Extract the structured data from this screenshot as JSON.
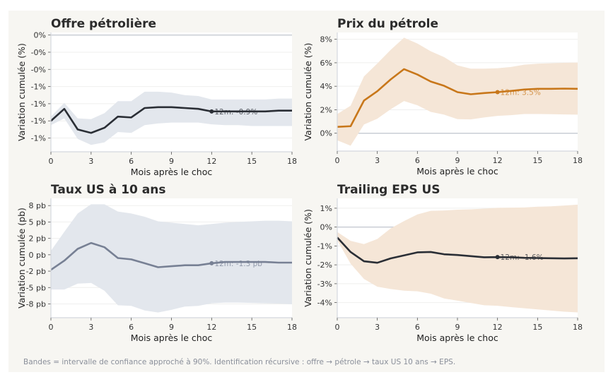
{
  "footer": "Bandes = intervalle de confiance approché à 90%. Identification récursive : offre → pétrole → taux US 10 ans → EPS.",
  "chart_data": [
    {
      "type": "line",
      "title": "Offre pétrolière",
      "xlabel": "Mois après le choc",
      "ylabel": "Variation cumulée (%)",
      "x": [
        0,
        1,
        2,
        3,
        4,
        5,
        6,
        7,
        8,
        9,
        10,
        11,
        12,
        13,
        14,
        15,
        16,
        17,
        18
      ],
      "xticks": [
        0,
        3,
        6,
        9,
        12,
        15,
        18
      ],
      "xticklabels": [
        "0",
        "3",
        "6",
        "9",
        "12",
        "15",
        "18"
      ],
      "ylim": [
        -1.36,
        0.03
      ],
      "yticks": [
        0,
        -0.2,
        -0.4,
        -0.6,
        -0.8,
        -1.0,
        -1.2
      ],
      "yticklabels": [
        "0%",
        "-0%",
        "-0%",
        "-1%",
        "-1%",
        "-1%",
        "-1%"
      ],
      "series": [
        {
          "values": [
            -1.0,
            -0.86,
            -1.1,
            -1.14,
            -1.08,
            -0.95,
            -0.96,
            -0.85,
            -0.84,
            -0.84,
            -0.85,
            -0.86,
            -0.89,
            -0.89,
            -0.89,
            -0.89,
            -0.89,
            -0.88,
            -0.88
          ],
          "band_upper": [
            -0.95,
            -0.79,
            -0.97,
            -0.98,
            -0.91,
            -0.77,
            -0.77,
            -0.66,
            -0.66,
            -0.67,
            -0.7,
            -0.71,
            -0.75,
            -0.75,
            -0.75,
            -0.75,
            -0.75,
            -0.74,
            -0.74
          ],
          "band_lower": [
            -1.05,
            -0.97,
            -1.21,
            -1.28,
            -1.25,
            -1.13,
            -1.14,
            -1.05,
            -1.03,
            -1.02,
            -1.02,
            -1.02,
            -1.04,
            -1.05,
            -1.05,
            -1.06,
            -1.06,
            -1.06,
            -1.06
          ]
        }
      ],
      "annotation": {
        "x": 12,
        "y": -0.89,
        "text": "12m: -0.9%"
      },
      "line_color": "#2a2e35",
      "band_color": "#e3e7ed",
      "grid": true
    },
    {
      "type": "line",
      "title": "Prix du pétrole",
      "xlabel": "Mois après le choc",
      "ylabel": "Variation cumulée (%)",
      "x": [
        0,
        1,
        2,
        3,
        4,
        5,
        6,
        7,
        8,
        9,
        10,
        11,
        12,
        13,
        14,
        15,
        16,
        17,
        18
      ],
      "xticks": [
        0,
        3,
        6,
        9,
        12,
        15,
        18
      ],
      "xticklabels": [
        "0",
        "3",
        "6",
        "9",
        "12",
        "15",
        "18"
      ],
      "ylim": [
        -1.52,
        8.58
      ],
      "yticks": [
        0,
        2,
        4,
        6,
        8
      ],
      "yticklabels": [
        "0%",
        "2%",
        "4%",
        "6%",
        "8%"
      ],
      "series": [
        {
          "values": [
            0.54,
            0.6,
            2.78,
            3.58,
            4.58,
            5.46,
            5.0,
            4.4,
            4.04,
            3.5,
            3.32,
            3.42,
            3.5,
            3.6,
            3.72,
            3.78,
            3.78,
            3.8,
            3.78
          ],
          "band_upper": [
            1.64,
            2.34,
            4.84,
            5.94,
            7.1,
            8.14,
            7.64,
            6.98,
            6.48,
            5.78,
            5.5,
            5.5,
            5.54,
            5.64,
            5.84,
            5.92,
            5.96,
            6.0,
            6.02
          ],
          "band_lower": [
            -0.6,
            -1.06,
            0.74,
            1.24,
            2.04,
            2.74,
            2.38,
            1.82,
            1.58,
            1.2,
            1.18,
            1.34,
            1.48,
            1.54,
            1.64,
            1.64,
            1.62,
            1.6,
            1.58
          ]
        }
      ],
      "annotation": {
        "x": 12,
        "y": 3.5,
        "text": "12m: 3.5%"
      },
      "line_color": "#c8771a",
      "band_color": "#f5e6d7",
      "grid": true
    },
    {
      "type": "line",
      "title": "Taux US à 10 ans",
      "xlabel": "Mois après le choc",
      "ylabel": "Variation cumulée (pb)",
      "x": [
        0,
        1,
        2,
        3,
        4,
        5,
        6,
        7,
        8,
        9,
        10,
        11,
        12,
        13,
        14,
        15,
        16,
        17,
        18
      ],
      "xticks": [
        0,
        3,
        6,
        9,
        12,
        15,
        18
      ],
      "xticklabels": [
        "0",
        "3",
        "6",
        "9",
        "12",
        "15",
        "18"
      ],
      "ylim": [
        -9.6,
        8.6
      ],
      "yticks": [
        7.5,
        5,
        2.5,
        0,
        -2.5,
        -5,
        -7.5
      ],
      "yticklabels": [
        "8 pb",
        "5 pb",
        "2 pb",
        "0 pb",
        "-2 pb",
        "-5 pb",
        "-8 pb"
      ],
      "series": [
        {
          "values": [
            -2.3,
            -0.9,
            0.9,
            1.8,
            1.15,
            -0.5,
            -0.7,
            -1.3,
            -1.9,
            -1.75,
            -1.6,
            -1.6,
            -1.3,
            -1.1,
            -1.1,
            -1.1,
            -1.1,
            -1.2,
            -1.2
          ],
          "band_upper": [
            0.6,
            3.5,
            6.3,
            7.7,
            7.7,
            6.6,
            6.3,
            5.8,
            5.1,
            4.9,
            4.7,
            4.5,
            4.7,
            4.9,
            5.0,
            5.1,
            5.2,
            5.2,
            5.1
          ],
          "band_lower": [
            -5.3,
            -5.3,
            -4.4,
            -4.3,
            -5.5,
            -7.7,
            -7.8,
            -8.5,
            -8.8,
            -8.4,
            -7.9,
            -7.8,
            -7.4,
            -7.3,
            -7.3,
            -7.35,
            -7.4,
            -7.45,
            -7.55
          ]
        }
      ],
      "annotation": {
        "x": 12,
        "y": -1.3,
        "text": "12m: -1.3 pb"
      },
      "line_color": "#778094",
      "band_color": "#e3e7ed",
      "grid": true
    },
    {
      "type": "line",
      "title": "Trailing EPS US",
      "xlabel": "Mois après le choc",
      "ylabel": "Variation cumulée (%)",
      "x": [
        0,
        1,
        2,
        3,
        4,
        5,
        6,
        7,
        8,
        9,
        10,
        11,
        12,
        13,
        14,
        15,
        16,
        17,
        18
      ],
      "xticks": [
        0,
        3,
        6,
        9,
        12,
        15,
        18
      ],
      "xticklabels": [
        "0",
        "3",
        "6",
        "9",
        "12",
        "15",
        "18"
      ],
      "ylim": [
        -4.8,
        1.52
      ],
      "yticks": [
        1,
        0,
        -1,
        -2,
        -3,
        -4
      ],
      "yticklabels": [
        "1%",
        "0%",
        "-1%",
        "-2%",
        "-3%",
        "-4%"
      ],
      "series": [
        {
          "values": [
            -0.55,
            -1.32,
            -1.81,
            -1.89,
            -1.66,
            -1.5,
            -1.34,
            -1.32,
            -1.44,
            -1.48,
            -1.54,
            -1.6,
            -1.59,
            -1.6,
            -1.63,
            -1.64,
            -1.65,
            -1.66,
            -1.65
          ],
          "band_upper": [
            -0.26,
            -0.73,
            -0.9,
            -0.63,
            -0.07,
            0.32,
            0.67,
            0.86,
            0.88,
            0.92,
            0.94,
            0.98,
            1.02,
            1.03,
            1.04,
            1.08,
            1.1,
            1.14,
            1.19
          ],
          "band_lower": [
            -0.7,
            -1.94,
            -2.75,
            -3.16,
            -3.28,
            -3.37,
            -3.4,
            -3.53,
            -3.78,
            -3.9,
            -4.02,
            -4.14,
            -4.17,
            -4.24,
            -4.3,
            -4.36,
            -4.42,
            -4.48,
            -4.52
          ]
        }
      ],
      "annotation": {
        "x": 12,
        "y": -1.59,
        "text": "12m: -1.6%"
      },
      "line_color": "#2a2e35",
      "band_color": "#f5e6d7",
      "grid": true
    }
  ]
}
